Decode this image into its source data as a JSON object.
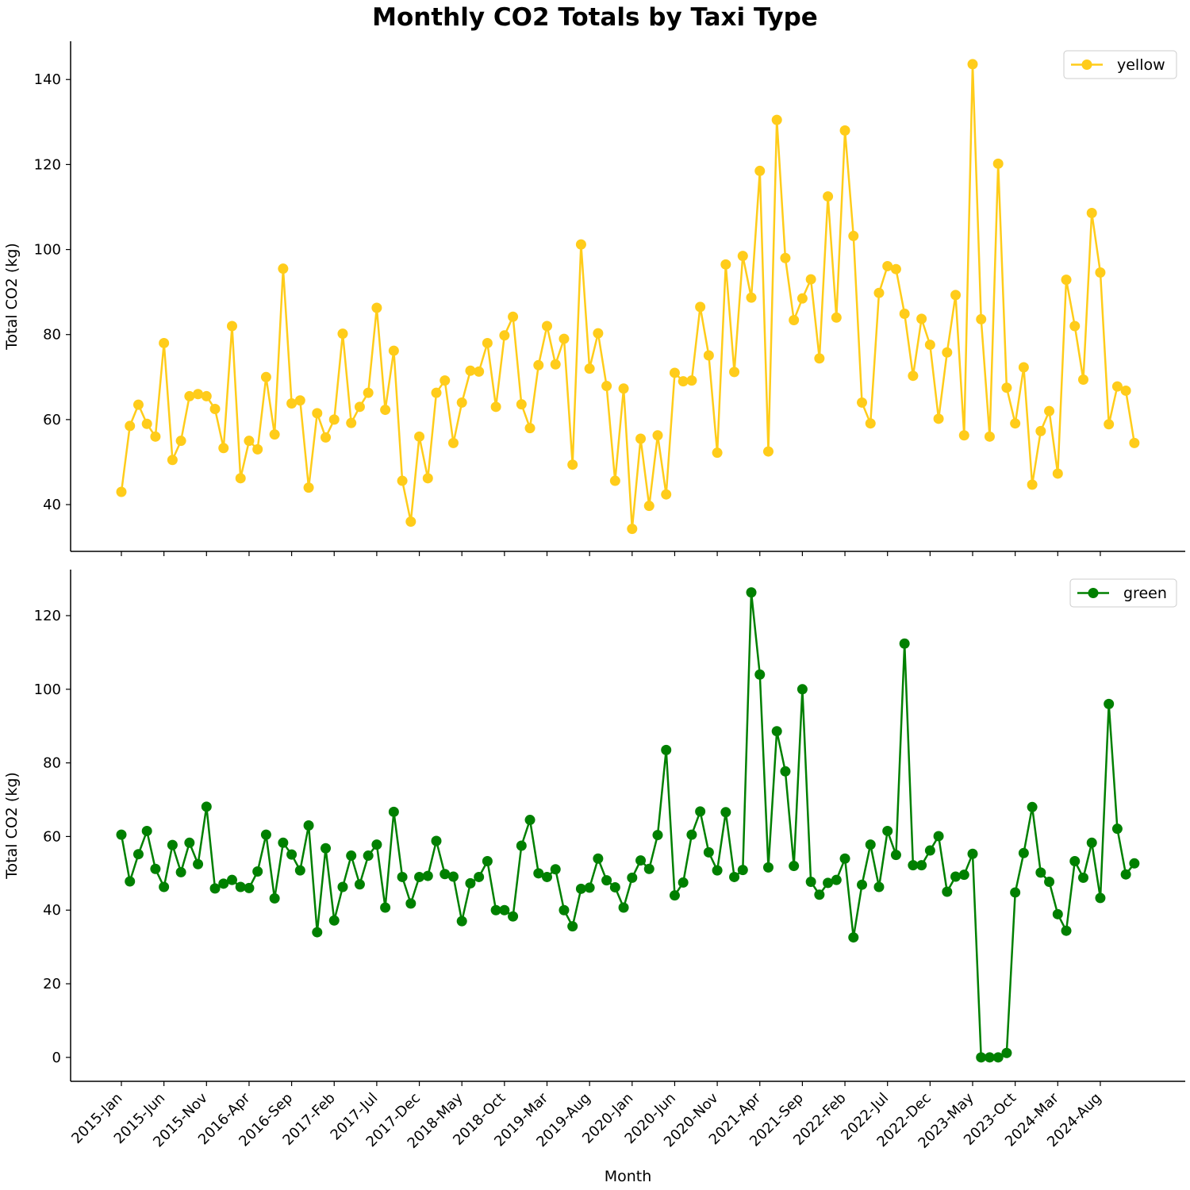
{
  "title": "Monthly CO2 Totals by Taxi Type",
  "chart_data": [
    {
      "type": "line",
      "panel": "top",
      "series": [
        {
          "name": "yellow",
          "color": "#FFCC1A",
          "values": [
            43,
            58.5,
            63.5,
            59,
            56,
            78,
            50.5,
            55,
            65.5,
            66,
            65.5,
            62.5,
            53.3,
            82,
            46.2,
            55,
            53,
            70,
            56.5,
            95.5,
            63.8,
            64.5,
            44,
            61.5,
            55.8,
            60,
            80.2,
            59.2,
            63,
            66.3,
            86.3,
            62.3,
            76.2,
            45.6,
            36,
            56,
            46.2,
            66.3,
            69.2,
            54.5,
            64,
            71.5,
            71.3,
            78,
            63,
            79.8,
            84.2,
            63.6,
            58,
            72.8,
            82,
            73,
            79,
            49.4,
            101.2,
            72,
            80.3,
            67.9,
            45.6,
            67.3,
            34.3,
            55.5,
            39.7,
            56.3,
            42.4,
            71,
            69,
            69.2,
            86.5,
            75.1,
            52.2,
            96.5,
            71.2,
            98.5,
            88.7,
            118.5,
            52.5,
            130.5,
            98,
            83.4,
            88.5,
            93,
            74.4,
            112.5,
            84,
            128,
            103.2,
            64,
            59.1,
            89.8,
            96.1,
            95.4,
            84.9,
            70.3,
            83.7,
            77.6,
            60.2,
            75.8,
            89.3,
            56.3,
            143.6,
            83.6,
            56,
            120.2,
            67.5,
            59.1,
            72.3,
            44.7,
            57.3,
            62,
            47.3,
            92.9,
            82,
            69.4,
            108.6,
            94.6,
            58.9,
            67.8,
            66.8,
            54.5
          ]
        }
      ],
      "ylabel": "Total CO2 (kg)",
      "ylim": [
        29,
        149
      ],
      "yticks": [
        40,
        60,
        80,
        100,
        120,
        140
      ],
      "legend": "top-right"
    },
    {
      "type": "line",
      "panel": "bottom",
      "series": [
        {
          "name": "green",
          "color": "#008000",
          "values": [
            60.5,
            47.8,
            55.2,
            61.5,
            51.2,
            46.3,
            57.7,
            50.3,
            58.3,
            52.5,
            68.1,
            45.9,
            47.2,
            48.2,
            46.3,
            46,
            50.5,
            60.5,
            43.2,
            58.3,
            55.1,
            50.8,
            63,
            34,
            56.8,
            37.2,
            46.3,
            54.8,
            47,
            54.8,
            57.8,
            40.7,
            66.7,
            49,
            41.8,
            49,
            49.3,
            58.8,
            49.8,
            49.1,
            37,
            47.3,
            49,
            53.3,
            40,
            40,
            38.3,
            57.5,
            64.5,
            50,
            49,
            51.1,
            40,
            35.6,
            45.8,
            46.1,
            54,
            48.1,
            46.2,
            40.7,
            48.8,
            53.5,
            51.2,
            60.4,
            83.5,
            44,
            47.5,
            60.5,
            66.8,
            55.7,
            50.8,
            66.6,
            49,
            50.9,
            126.3,
            104,
            51.6,
            88.6,
            77.7,
            52,
            100,
            47.7,
            44.2,
            47.4,
            48.2,
            54,
            32.6,
            46.9,
            57.8,
            46.3,
            61.5,
            55,
            112.4,
            52.2,
            52.2,
            56.2,
            60.1,
            45,
            49.1,
            49.6,
            55.3,
            0,
            0,
            0,
            1.2,
            44.8,
            55.5,
            68,
            50.2,
            47.7,
            38.9,
            34.4,
            53.3,
            48.8,
            58.3,
            43.3,
            96,
            62.1,
            49.7,
            52.7
          ]
        }
      ],
      "xlabel": "Month",
      "ylabel": "Total CO2 (kg)",
      "ylim": [
        -6.5,
        132.5
      ],
      "yticks": [
        0,
        20,
        40,
        60,
        80,
        100,
        120
      ],
      "legend": "top-right"
    }
  ],
  "x_tick_labels": [
    "2015-Jan",
    "2015-Jun",
    "2015-Nov",
    "2016-Apr",
    "2016-Sep",
    "2017-Feb",
    "2017-Jul",
    "2017-Dec",
    "2018-May",
    "2018-Oct",
    "2019-Mar",
    "2019-Aug",
    "2020-Jan",
    "2020-Jun",
    "2020-Nov",
    "2021-Apr",
    "2021-Sep",
    "2022-Feb",
    "2022-Jul",
    "2022-Dec",
    "2023-May",
    "2023-Oct",
    "2024-Mar",
    "2024-Aug"
  ],
  "x_tick_step_months": 5
}
